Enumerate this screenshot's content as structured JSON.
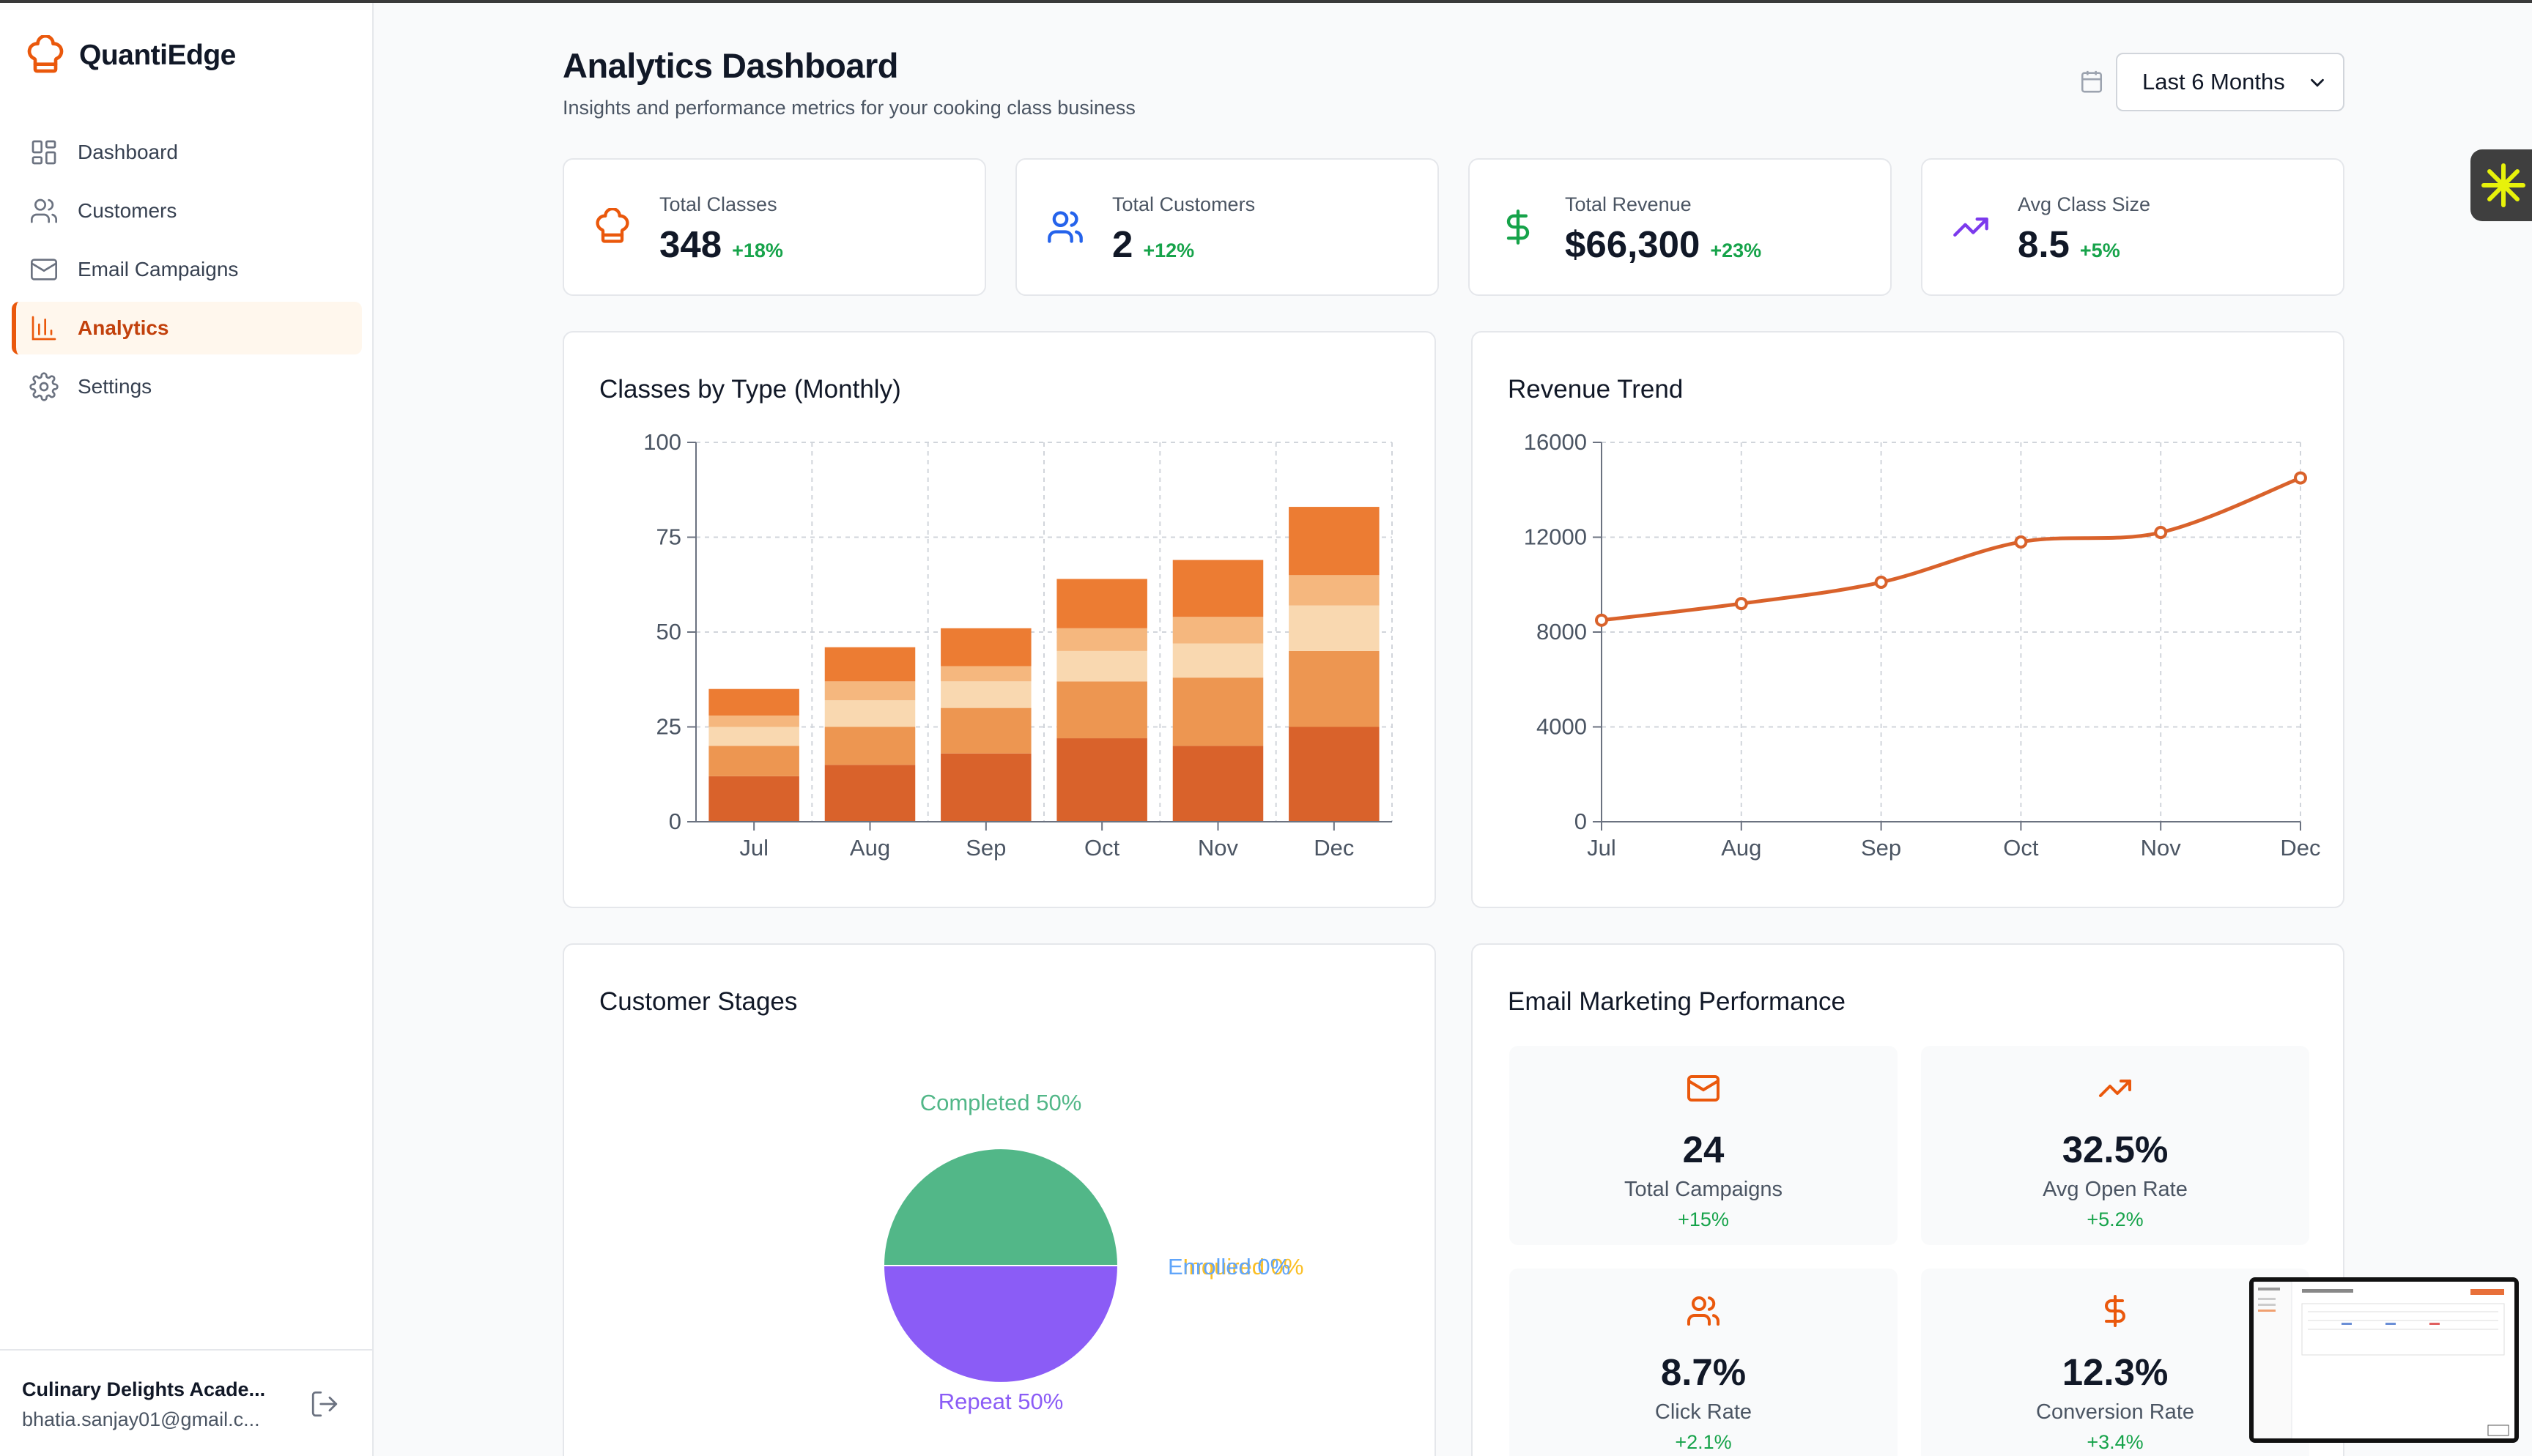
{
  "brand": {
    "name": "QuantiEdge"
  },
  "nav": [
    {
      "label": "Dashboard",
      "icon": "grid-icon"
    },
    {
      "label": "Customers",
      "icon": "users-icon"
    },
    {
      "label": "Email Campaigns",
      "icon": "mail-icon"
    },
    {
      "label": "Analytics",
      "icon": "bar-chart-icon",
      "active": true
    },
    {
      "label": "Settings",
      "icon": "gear-icon"
    }
  ],
  "account": {
    "org": "Culinary Delights Acade...",
    "email": "bhatia.sanjay01@gmail.c..."
  },
  "header": {
    "title": "Analytics Dashboard",
    "subtitle": "Insights and performance metrics for your cooking class business",
    "period": "Last 6 Months"
  },
  "stats": [
    {
      "label": "Total Classes",
      "value": "348",
      "delta": "+18%",
      "icon": "chef-hat-icon",
      "color": "#ea580c"
    },
    {
      "label": "Total Customers",
      "value": "2",
      "delta": "+12%",
      "icon": "users-icon",
      "color": "#2563eb"
    },
    {
      "label": "Total Revenue",
      "value": "$66,300",
      "delta": "+23%",
      "icon": "dollar-icon",
      "color": "#16a34a"
    },
    {
      "label": "Avg Class Size",
      "value": "8.5",
      "delta": "+5%",
      "icon": "trending-up-icon",
      "color": "#7c3aed"
    }
  ],
  "panels": {
    "classes_title": "Classes by Type (Monthly)",
    "revenue_title": "Revenue Trend",
    "stages_title": "Customer Stages",
    "email_title": "Email Marketing Performance"
  },
  "chart_data": [
    {
      "type": "bar",
      "stacked": true,
      "title": "Classes by Type (Monthly)",
      "categories": [
        "Jul",
        "Aug",
        "Sep",
        "Oct",
        "Nov",
        "Dec"
      ],
      "ylim": [
        0,
        100
      ],
      "yticks": [
        0,
        25,
        50,
        75,
        100
      ],
      "grid": true,
      "series": [
        {
          "values": [
            12,
            15,
            18,
            22,
            20,
            25
          ],
          "color": "#d9622b"
        },
        {
          "values": [
            8,
            10,
            12,
            15,
            18,
            20
          ],
          "color": "#ed9651"
        },
        {
          "values": [
            5,
            7,
            7,
            8,
            9,
            12
          ],
          "color": "#f9d8b0"
        },
        {
          "values": [
            3,
            5,
            4,
            6,
            7,
            8
          ],
          "color": "#f5b77e"
        },
        {
          "values": [
            7,
            9,
            10,
            13,
            15,
            18
          ],
          "color": "#ec7c33"
        }
      ]
    },
    {
      "type": "line",
      "title": "Revenue Trend",
      "x": [
        "Jul",
        "Aug",
        "Sep",
        "Oct",
        "Nov",
        "Dec"
      ],
      "values": [
        8500,
        9200,
        10100,
        11800,
        12200,
        14500
      ],
      "ylim": [
        0,
        16000
      ],
      "yticks": [
        0,
        4000,
        8000,
        12000,
        16000
      ],
      "grid": true,
      "color": "#d9622b"
    },
    {
      "type": "pie",
      "title": "Customer Stages",
      "slices": [
        {
          "label": "Completed 50%",
          "value": 50,
          "color": "#52b788"
        },
        {
          "label": "Repeat 50%",
          "value": 50,
          "color": "#8b5cf6"
        },
        {
          "label": "Enrolled 0%",
          "value": 0,
          "color": "#60a5fa"
        },
        {
          "label": "Inquired 0%",
          "value": 0,
          "color": "#fbbf24"
        }
      ]
    }
  ],
  "email_metrics": [
    {
      "value": "24",
      "label": "Total Campaigns",
      "delta": "+15%",
      "icon": "mail-icon"
    },
    {
      "value": "32.5%",
      "label": "Avg Open Rate",
      "delta": "+5.2%",
      "icon": "trending-up-icon"
    },
    {
      "value": "8.7%",
      "label": "Click Rate",
      "delta": "+2.1%",
      "icon": "users-icon"
    },
    {
      "value": "12.3%",
      "label": "Conversion Rate",
      "delta": "+3.4%",
      "icon": "dollar-icon"
    }
  ]
}
